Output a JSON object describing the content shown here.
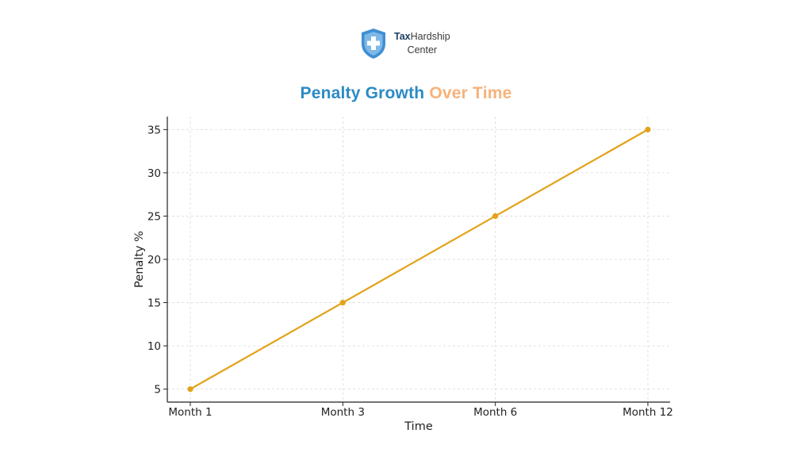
{
  "logo": {
    "name_bold": "Tax",
    "name_rest": "Hardship",
    "name_line2": "Center",
    "shield_color": "#3f8fd2",
    "icon": "medical-cross-shield-icon"
  },
  "title": {
    "part1": "Penalty Growth",
    "part2": "Over Time",
    "color1": "#2b8ac4",
    "color2": "#f6b27a"
  },
  "chart_data": {
    "type": "line",
    "categories": [
      "Month 1",
      "Month 3",
      "Month 6",
      "Month 12"
    ],
    "series": [
      {
        "values": [
          5,
          15,
          25,
          35
        ],
        "color": "#e3a219"
      }
    ],
    "xlabel": "Time",
    "ylabel": "Penalty %",
    "ylim": [
      3.5,
      36.5
    ],
    "yticks": [
      5,
      10,
      15,
      20,
      25,
      30,
      35
    ],
    "grid": true,
    "legend": "none"
  }
}
